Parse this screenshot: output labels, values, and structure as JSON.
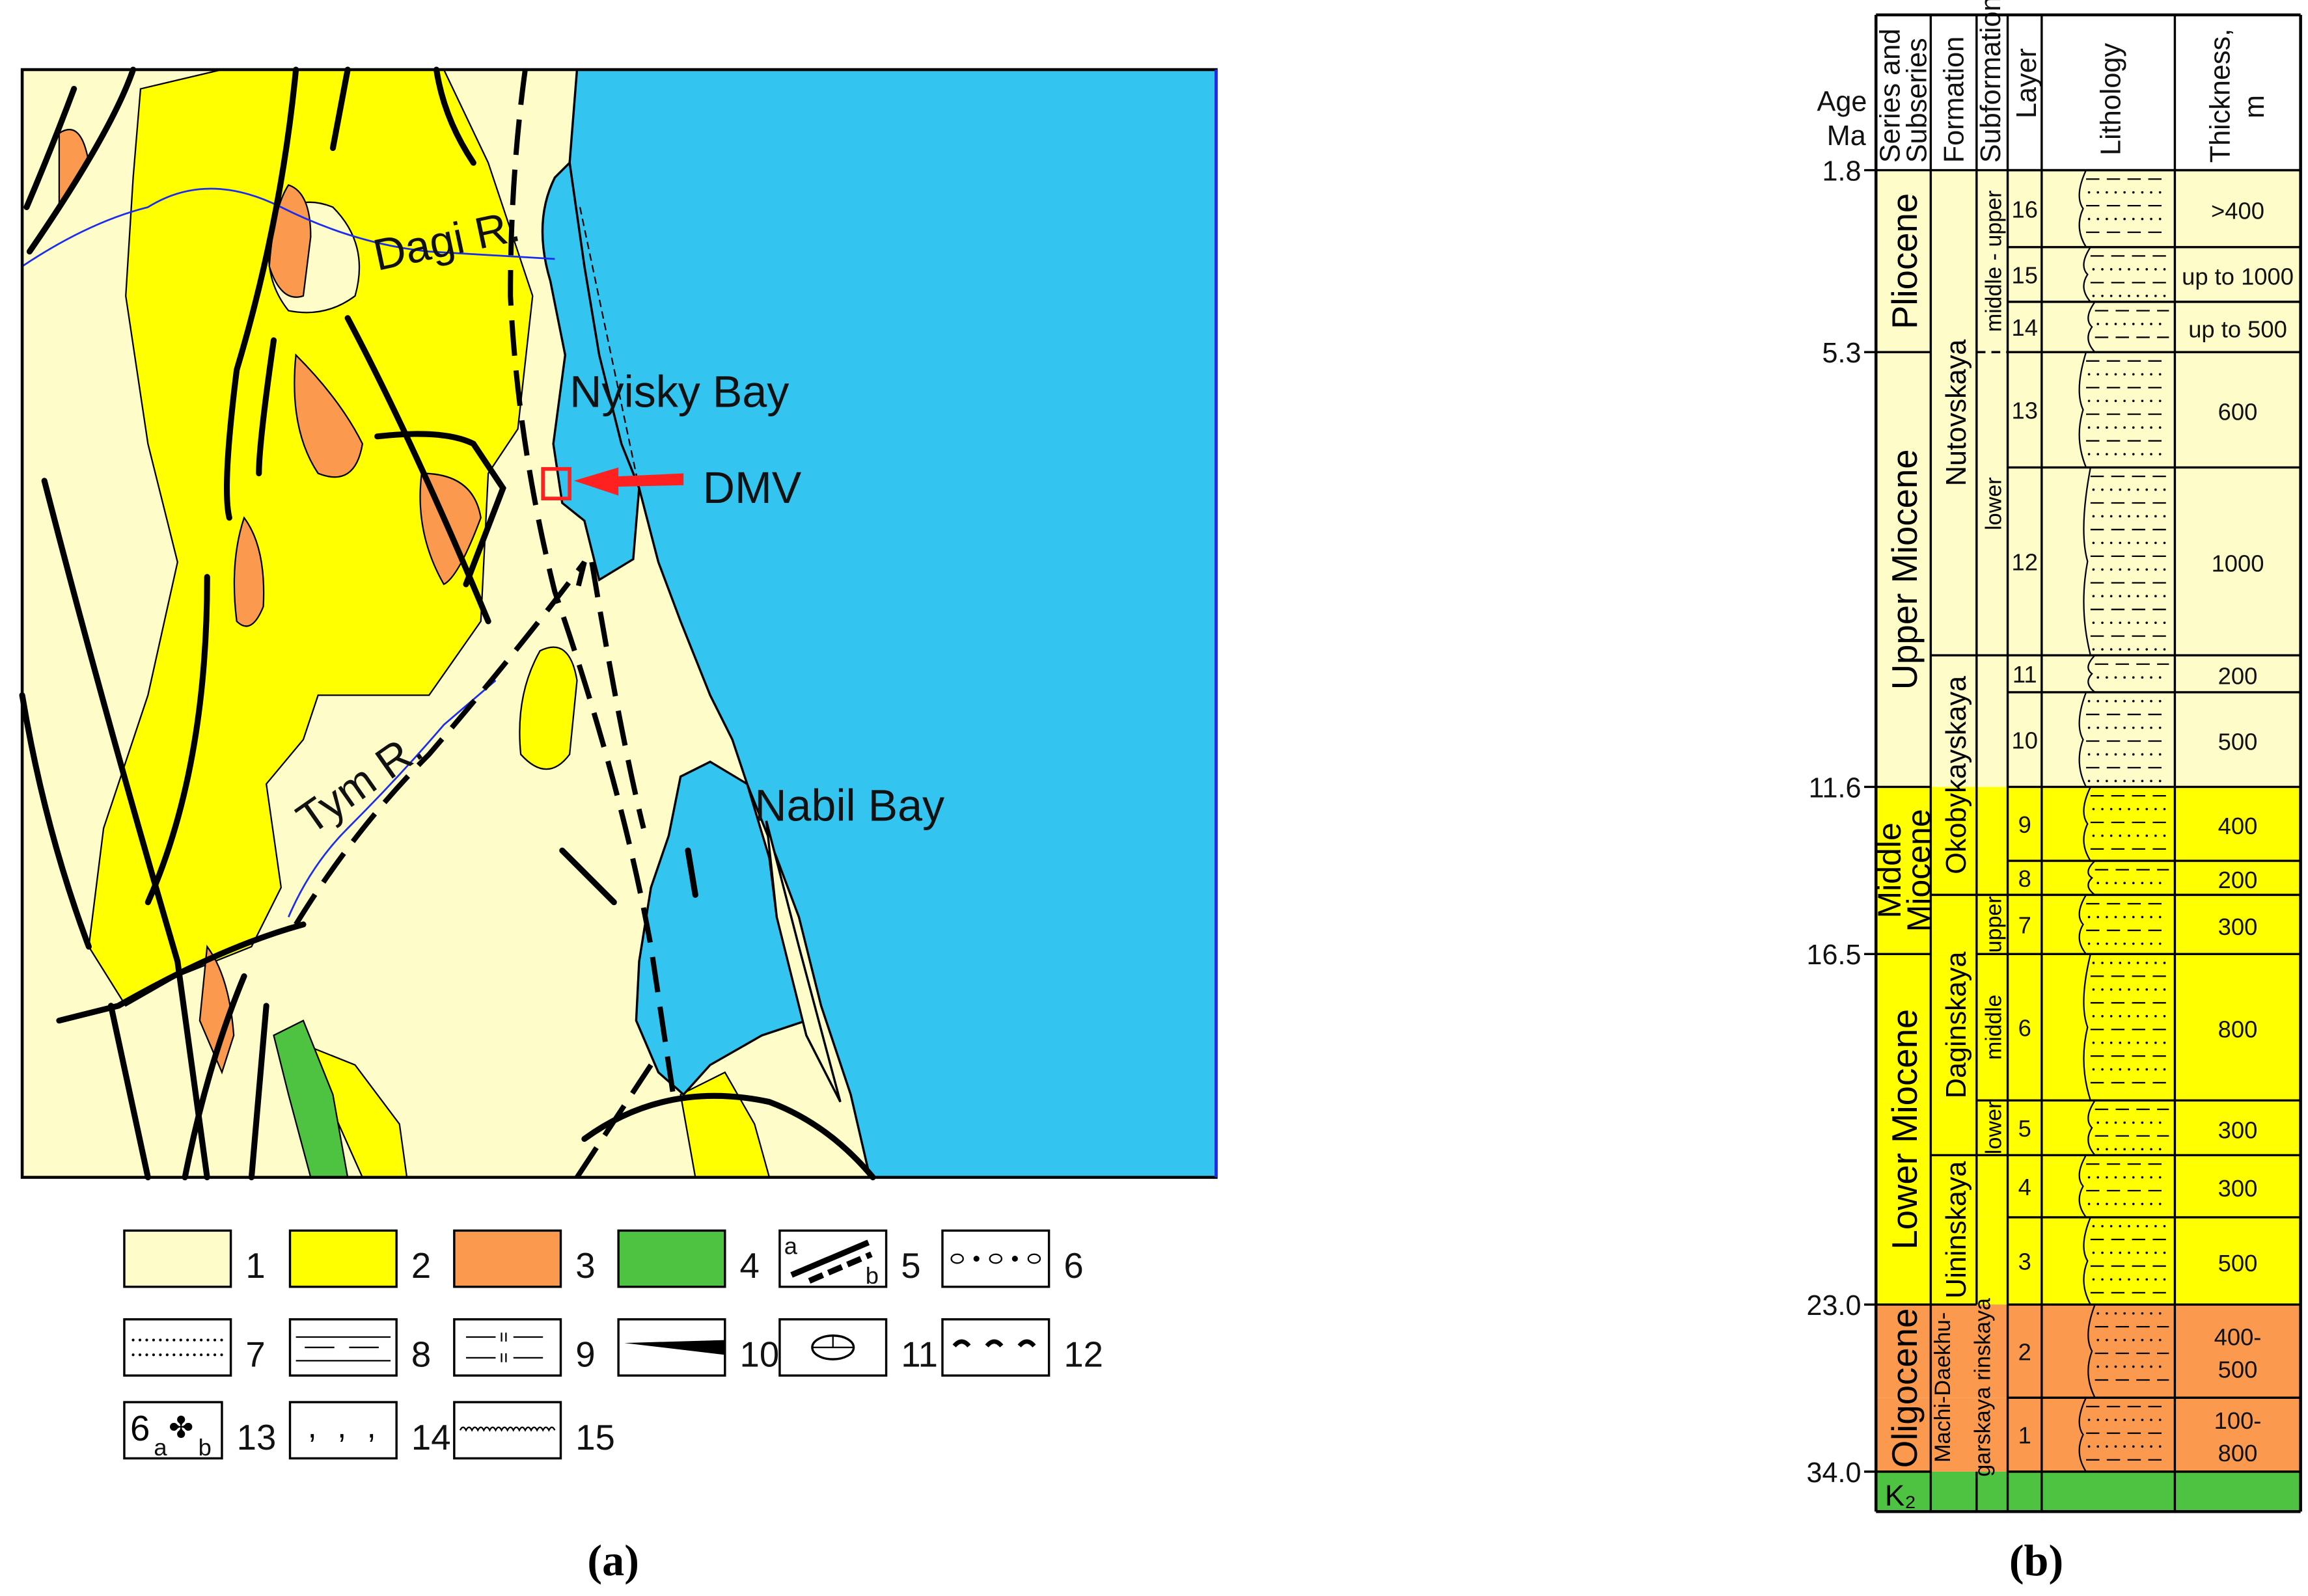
{
  "colors": {
    "unit1": "#fefcc8",
    "unit2": "#ffff00",
    "unit3": "#fb9a4f",
    "unit4": "#4dc341",
    "sea": "#33c4f0",
    "river": "#1a2cf0",
    "marker": "#ff2020"
  },
  "map": {
    "labels": {
      "dagi": "Dagi R.",
      "nyisky": "Nyisky Bay",
      "dmv": "DMV",
      "tym": "Tym R.",
      "nabil": "Nabil Bay"
    },
    "legend": [
      {
        "num": "1",
        "pattern": "unit1"
      },
      {
        "num": "2",
        "pattern": "unit2"
      },
      {
        "num": "3",
        "pattern": "unit3"
      },
      {
        "num": "4",
        "pattern": "unit4"
      },
      {
        "num": "5",
        "pattern": "faults",
        "a": "a",
        "b": "b"
      },
      {
        "num": "6",
        "pattern": "gravel"
      },
      {
        "num": "7",
        "pattern": "sand"
      },
      {
        "num": "8",
        "pattern": "clay"
      },
      {
        "num": "9",
        "pattern": "siliceous-clay"
      },
      {
        "num": "10",
        "pattern": "coal-wedge"
      },
      {
        "num": "11",
        "pattern": "concretion"
      },
      {
        "num": "12",
        "pattern": "plant-remains"
      },
      {
        "num": "13",
        "pattern": "fauna",
        "a": "a",
        "b": "b"
      },
      {
        "num": "14",
        "pattern": "glauconite"
      },
      {
        "num": "15",
        "pattern": "unconformity"
      }
    ],
    "caption": "(a)"
  },
  "column": {
    "headers": {
      "age": "Age",
      "age_unit": "Ma",
      "series1": "Series and",
      "series2": "Subseries",
      "formation": "Formation",
      "subformation": "Subformation",
      "layer": "Layer",
      "lithology": "Lithology",
      "thickness1": "Thickness,",
      "thickness2": "m"
    },
    "ages": [
      "1.8",
      "5.3",
      "11.6",
      "16.5",
      "23.0",
      "34.0"
    ],
    "series": [
      {
        "name": "Pliocene",
        "color": "unit1"
      },
      {
        "name": "Upper Miocene",
        "color": "unit1"
      },
      {
        "name": "Middle Miocene",
        "color": "unit2"
      },
      {
        "name": "Lower Miocene",
        "color": "unit2"
      },
      {
        "name": "Oligocene",
        "color": "unit3"
      },
      {
        "name": "K₂",
        "color": "unit4"
      }
    ],
    "formations": [
      "Nutovskaya",
      "Okobykayskaya",
      "Daginskaya",
      "Uininskaya",
      "Machi-Daekhu-",
      "garskaya rinskaya"
    ],
    "subformations": [
      "middle - upper",
      "lower",
      "upper",
      "middle",
      "lower"
    ],
    "layers": [
      {
        "layer": "16",
        "thickness": ">400"
      },
      {
        "layer": "15",
        "thickness": "up to 1000"
      },
      {
        "layer": "14",
        "thickness": "up to 500"
      },
      {
        "layer": "13",
        "thickness": "600"
      },
      {
        "layer": "12",
        "thickness": "1000"
      },
      {
        "layer": "11",
        "thickness": "200"
      },
      {
        "layer": "10",
        "thickness": "500"
      },
      {
        "layer": "9",
        "thickness": "400"
      },
      {
        "layer": "8",
        "thickness": "200"
      },
      {
        "layer": "7",
        "thickness": "300"
      },
      {
        "layer": "6",
        "thickness": "800"
      },
      {
        "layer": "5",
        "thickness": "300"
      },
      {
        "layer": "4",
        "thickness": "300"
      },
      {
        "layer": "3",
        "thickness": "500"
      },
      {
        "layer": "2",
        "thickness": "400-\n500"
      },
      {
        "layer": "1",
        "thickness": "100-\n800"
      }
    ],
    "caption": "(b)"
  }
}
